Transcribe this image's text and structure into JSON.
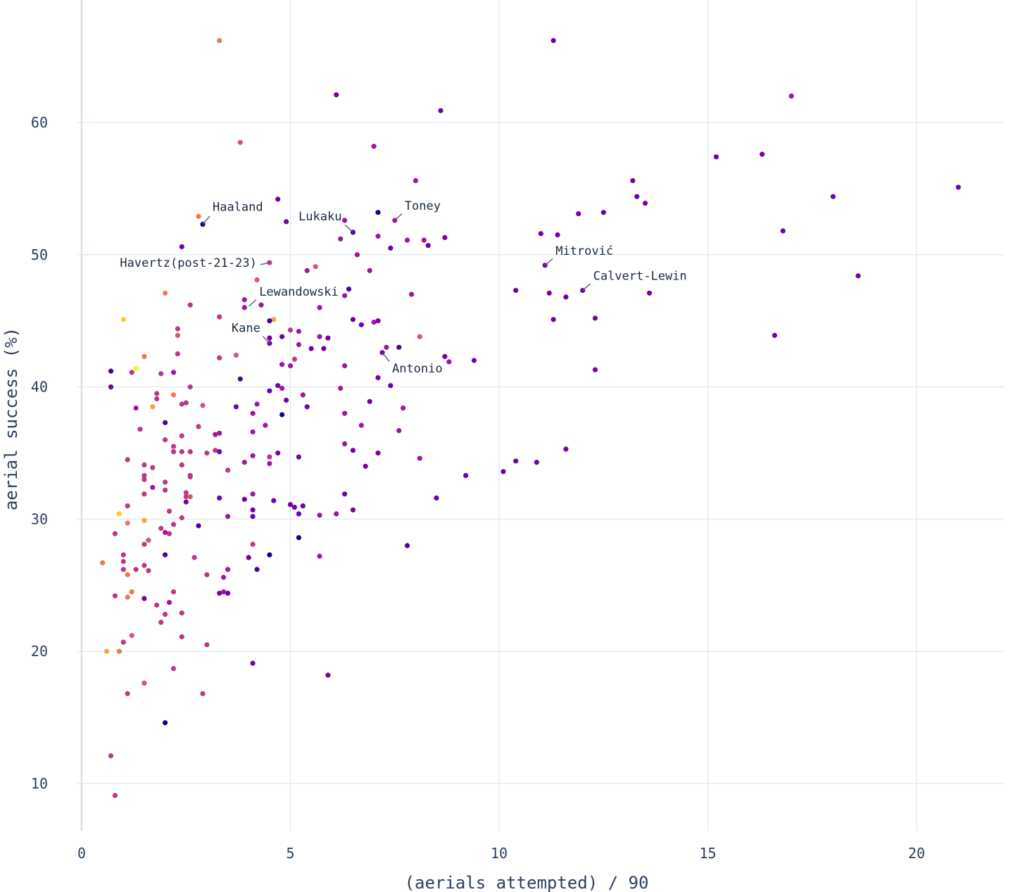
{
  "chart_data": {
    "type": "scatter",
    "xlabel": "(aerials attempted) / 90",
    "ylabel": "aerial success (%)",
    "xlim": [
      -0.3,
      22
    ],
    "ylim": [
      5,
      67
    ],
    "xticks": [
      0,
      5,
      10,
      15,
      20
    ],
    "yticks": [
      10,
      20,
      30,
      40,
      50,
      60
    ],
    "grid": true,
    "legend": "none",
    "colorscale": "plasma",
    "palette": [
      "#0d0887",
      "#46039f",
      "#7201a8",
      "#9c179e",
      "#bd3786",
      "#d8576b",
      "#ed7953",
      "#fb9f3a",
      "#fdca26",
      "#f0f921"
    ],
    "points": [
      [
        3.3,
        66.2,
        6
      ],
      [
        11.3,
        66.2,
        2
      ],
      [
        6.1,
        62.1,
        2
      ],
      [
        8.6,
        60.9,
        2
      ],
      [
        17.0,
        62.0,
        3
      ],
      [
        3.8,
        58.5,
        5
      ],
      [
        7.0,
        58.2,
        3
      ],
      [
        15.2,
        57.4,
        2
      ],
      [
        16.3,
        57.6,
        2
      ],
      [
        21.0,
        55.1,
        2
      ],
      [
        13.2,
        55.6,
        2
      ],
      [
        13.3,
        54.4,
        2
      ],
      [
        13.5,
        53.9,
        2
      ],
      [
        18.0,
        54.4,
        2
      ],
      [
        8.0,
        55.6,
        3
      ],
      [
        4.7,
        54.2,
        2
      ],
      [
        7.1,
        53.2,
        0
      ],
      [
        11.9,
        53.1,
        2
      ],
      [
        12.5,
        53.2,
        2
      ],
      [
        16.8,
        51.8,
        2
      ],
      [
        2.9,
        52.3,
        0
      ],
      [
        2.8,
        52.9,
        6
      ],
      [
        4.9,
        52.5,
        2
      ],
      [
        6.3,
        52.6,
        3
      ],
      [
        6.5,
        51.7,
        1
      ],
      [
        7.5,
        52.6,
        3
      ],
      [
        7.1,
        51.4,
        3
      ],
      [
        6.2,
        51.2,
        3
      ],
      [
        7.8,
        51.1,
        3
      ],
      [
        8.2,
        51.1,
        3
      ],
      [
        8.7,
        51.3,
        2
      ],
      [
        8.3,
        50.7,
        2
      ],
      [
        7.4,
        50.5,
        2
      ],
      [
        11.0,
        51.6,
        2
      ],
      [
        11.4,
        51.5,
        2
      ],
      [
        2.4,
        50.6,
        2
      ],
      [
        6.6,
        50.0,
        3
      ],
      [
        4.5,
        49.4,
        4
      ],
      [
        11.1,
        49.2,
        2
      ],
      [
        5.6,
        49.1,
        5
      ],
      [
        5.4,
        48.8,
        3
      ],
      [
        6.9,
        48.8,
        3
      ],
      [
        18.6,
        48.4,
        2
      ],
      [
        4.2,
        48.1,
        5
      ],
      [
        12.0,
        47.3,
        2
      ],
      [
        10.4,
        47.3,
        2
      ],
      [
        11.2,
        47.1,
        2
      ],
      [
        13.6,
        47.1,
        2
      ],
      [
        7.9,
        47.0,
        3
      ],
      [
        11.6,
        46.8,
        2
      ],
      [
        6.4,
        47.4,
        1
      ],
      [
        6.3,
        46.9,
        3
      ],
      [
        2.0,
        47.1,
        6
      ],
      [
        3.9,
        46.6,
        3
      ],
      [
        3.9,
        46.0,
        3
      ],
      [
        4.3,
        46.2,
        3
      ],
      [
        2.6,
        46.2,
        4
      ],
      [
        5.7,
        46.0,
        3
      ],
      [
        3.3,
        45.3,
        4
      ],
      [
        1.0,
        45.1,
        8
      ],
      [
        4.6,
        45.1,
        7
      ],
      [
        4.5,
        45.0,
        1
      ],
      [
        6.5,
        45.1,
        2
      ],
      [
        7.1,
        45.0,
        2
      ],
      [
        7.0,
        44.9,
        3
      ],
      [
        11.3,
        45.1,
        2
      ],
      [
        12.3,
        45.2,
        2
      ],
      [
        6.7,
        44.7,
        2
      ],
      [
        2.3,
        44.4,
        4
      ],
      [
        5.0,
        44.3,
        4
      ],
      [
        5.2,
        44.2,
        3
      ],
      [
        4.8,
        43.8,
        2
      ],
      [
        4.5,
        43.7,
        2
      ],
      [
        5.7,
        43.8,
        3
      ],
      [
        5.9,
        43.7,
        2
      ],
      [
        8.1,
        43.8,
        5
      ],
      [
        16.6,
        43.9,
        2
      ],
      [
        2.3,
        43.9,
        5
      ],
      [
        4.5,
        43.3,
        2
      ],
      [
        5.2,
        43.2,
        3
      ],
      [
        5.5,
        42.9,
        2
      ],
      [
        5.8,
        42.9,
        2
      ],
      [
        7.3,
        43.0,
        3
      ],
      [
        7.6,
        43.0,
        1
      ],
      [
        7.2,
        42.6,
        2
      ],
      [
        3.7,
        42.4,
        5
      ],
      [
        2.3,
        42.5,
        4
      ],
      [
        1.5,
        42.3,
        6
      ],
      [
        3.3,
        42.2,
        4
      ],
      [
        8.7,
        42.3,
        2
      ],
      [
        8.8,
        41.9,
        3
      ],
      [
        9.4,
        42.0,
        2
      ],
      [
        5.1,
        42.1,
        4
      ],
      [
        4.8,
        41.7,
        3
      ],
      [
        5.0,
        41.6,
        3
      ],
      [
        6.3,
        41.6,
        3
      ],
      [
        0.7,
        41.2,
        1
      ],
      [
        1.2,
        41.1,
        4
      ],
      [
        1.3,
        41.4,
        9
      ],
      [
        1.9,
        41.0,
        4
      ],
      [
        2.2,
        41.1,
        3
      ],
      [
        12.3,
        41.3,
        2
      ],
      [
        3.8,
        40.6,
        1
      ],
      [
        7.1,
        40.7,
        2
      ],
      [
        0.7,
        40.0,
        2
      ],
      [
        2.6,
        40.0,
        4
      ],
      [
        4.7,
        40.1,
        2
      ],
      [
        4.8,
        39.9,
        3
      ],
      [
        4.5,
        39.7,
        2
      ],
      [
        6.2,
        39.9,
        3
      ],
      [
        7.4,
        40.1,
        2
      ],
      [
        1.8,
        39.5,
        4
      ],
      [
        2.2,
        39.4,
        6
      ],
      [
        5.3,
        39.4,
        3
      ],
      [
        4.9,
        39.0,
        2
      ],
      [
        6.9,
        38.9,
        2
      ],
      [
        1.8,
        39.1,
        4
      ],
      [
        2.5,
        38.8,
        4
      ],
      [
        2.4,
        38.7,
        4
      ],
      [
        2.9,
        38.6,
        5
      ],
      [
        4.2,
        38.7,
        3
      ],
      [
        5.4,
        38.5,
        2
      ],
      [
        3.7,
        38.5,
        2
      ],
      [
        1.3,
        38.4,
        3
      ],
      [
        1.7,
        38.5,
        7
      ],
      [
        7.7,
        38.4,
        3
      ],
      [
        4.1,
        38.0,
        3
      ],
      [
        4.8,
        37.9,
        0
      ],
      [
        6.3,
        38.0,
        3
      ],
      [
        2.0,
        37.3,
        1
      ],
      [
        2.8,
        37.0,
        4
      ],
      [
        4.4,
        37.1,
        3
      ],
      [
        6.7,
        37.1,
        3
      ],
      [
        1.4,
        36.8,
        4
      ],
      [
        7.6,
        36.7,
        3
      ],
      [
        4.1,
        36.6,
        3
      ],
      [
        3.2,
        36.4,
        3
      ],
      [
        3.3,
        36.5,
        3
      ],
      [
        2.4,
        36.3,
        4
      ],
      [
        2.0,
        36.0,
        4
      ],
      [
        6.3,
        35.7,
        3
      ],
      [
        2.2,
        35.5,
        4
      ],
      [
        3.2,
        35.2,
        4
      ],
      [
        11.6,
        35.3,
        2
      ],
      [
        2.2,
        35.1,
        4
      ],
      [
        2.4,
        35.1,
        4
      ],
      [
        2.6,
        35.1,
        4
      ],
      [
        3.0,
        35.0,
        4
      ],
      [
        3.3,
        35.1,
        2
      ],
      [
        4.7,
        35.0,
        2
      ],
      [
        6.5,
        35.2,
        2
      ],
      [
        7.1,
        35.0,
        2
      ],
      [
        4.1,
        34.8,
        3
      ],
      [
        4.5,
        34.7,
        4
      ],
      [
        5.2,
        34.7,
        2
      ],
      [
        8.1,
        34.6,
        3
      ],
      [
        1.1,
        34.5,
        4
      ],
      [
        10.4,
        34.4,
        2
      ],
      [
        3.9,
        34.3,
        3
      ],
      [
        4.5,
        34.2,
        3
      ],
      [
        10.9,
        34.3,
        2
      ],
      [
        1.5,
        34.1,
        4
      ],
      [
        2.4,
        34.1,
        4
      ],
      [
        1.7,
        33.9,
        4
      ],
      [
        6.8,
        34.0,
        2
      ],
      [
        3.5,
        33.7,
        4
      ],
      [
        10.1,
        33.6,
        2
      ],
      [
        1.5,
        33.3,
        4
      ],
      [
        1.5,
        33.0,
        4
      ],
      [
        2.6,
        33.2,
        4
      ],
      [
        2.6,
        33.3,
        4
      ],
      [
        9.2,
        33.3,
        2
      ],
      [
        2.0,
        32.8,
        4
      ],
      [
        1.7,
        32.4,
        3
      ],
      [
        2.0,
        32.2,
        4
      ],
      [
        2.5,
        32.0,
        4
      ],
      [
        1.5,
        31.9,
        4
      ],
      [
        2.5,
        31.7,
        4
      ],
      [
        2.6,
        31.7,
        5
      ],
      [
        2.5,
        31.3,
        2
      ],
      [
        3.3,
        31.6,
        2
      ],
      [
        3.9,
        31.5,
        2
      ],
      [
        4.1,
        31.9,
        3
      ],
      [
        4.6,
        31.4,
        2
      ],
      [
        6.3,
        31.9,
        2
      ],
      [
        8.5,
        31.6,
        2
      ],
      [
        1.1,
        31.0,
        4
      ],
      [
        5.0,
        31.1,
        2
      ],
      [
        5.1,
        30.9,
        2
      ],
      [
        5.3,
        31.0,
        2
      ],
      [
        4.1,
        30.7,
        2
      ],
      [
        6.5,
        30.7,
        2
      ],
      [
        2.1,
        30.6,
        4
      ],
      [
        5.2,
        30.4,
        2
      ],
      [
        5.7,
        30.3,
        3
      ],
      [
        6.1,
        30.4,
        3
      ],
      [
        0.9,
        30.4,
        8
      ],
      [
        2.4,
        30.1,
        4
      ],
      [
        4.1,
        30.2,
        2
      ],
      [
        3.5,
        30.2,
        3
      ],
      [
        1.5,
        29.9,
        7
      ],
      [
        1.1,
        29.7,
        6
      ],
      [
        2.2,
        29.6,
        4
      ],
      [
        2.8,
        29.5,
        1
      ],
      [
        1.9,
        29.3,
        4
      ],
      [
        2.1,
        28.9,
        4
      ],
      [
        0.8,
        28.9,
        4
      ],
      [
        2.0,
        29.0,
        3
      ],
      [
        5.2,
        28.6,
        0
      ],
      [
        1.6,
        28.4,
        5
      ],
      [
        1.5,
        28.1,
        4
      ],
      [
        4.1,
        28.1,
        4
      ],
      [
        7.8,
        28.0,
        1
      ],
      [
        1.0,
        27.3,
        4
      ],
      [
        2.0,
        27.3,
        1
      ],
      [
        4.5,
        27.3,
        0
      ],
      [
        4.0,
        27.1,
        2
      ],
      [
        5.7,
        27.2,
        3
      ],
      [
        2.7,
        27.1,
        4
      ],
      [
        1.0,
        26.8,
        4
      ],
      [
        0.5,
        26.7,
        6
      ],
      [
        1.5,
        26.5,
        4
      ],
      [
        3.5,
        26.2,
        3
      ],
      [
        4.2,
        26.2,
        1
      ],
      [
        1.3,
        26.2,
        4
      ],
      [
        1.6,
        26.1,
        4
      ],
      [
        1.0,
        26.2,
        4
      ],
      [
        1.1,
        25.8,
        6
      ],
      [
        3.0,
        25.8,
        4
      ],
      [
        3.4,
        25.6,
        3
      ],
      [
        2.2,
        24.5,
        4
      ],
      [
        3.3,
        24.4,
        2
      ],
      [
        3.5,
        24.4,
        2
      ],
      [
        3.4,
        24.5,
        3
      ],
      [
        1.2,
        24.5,
        6
      ],
      [
        0.8,
        24.2,
        4
      ],
      [
        1.1,
        24.1,
        6
      ],
      [
        1.5,
        24.0,
        2
      ],
      [
        2.1,
        23.7,
        3
      ],
      [
        1.8,
        23.5,
        4
      ],
      [
        2.4,
        22.9,
        4
      ],
      [
        2.0,
        22.8,
        4
      ],
      [
        1.9,
        22.2,
        4
      ],
      [
        1.2,
        21.2,
        5
      ],
      [
        2.4,
        21.1,
        4
      ],
      [
        1.0,
        20.7,
        4
      ],
      [
        3.0,
        20.5,
        4
      ],
      [
        0.6,
        20.0,
        7
      ],
      [
        0.9,
        20.0,
        6
      ],
      [
        4.1,
        19.1,
        2
      ],
      [
        2.2,
        18.7,
        4
      ],
      [
        5.9,
        18.2,
        2
      ],
      [
        1.5,
        17.6,
        4
      ],
      [
        1.5,
        17.6,
        5
      ],
      [
        1.1,
        16.8,
        4
      ],
      [
        2.9,
        16.8,
        4
      ],
      [
        2.0,
        14.6,
        0
      ],
      [
        0.7,
        12.1,
        4
      ],
      [
        0.8,
        9.1,
        4
      ]
    ],
    "annotations": [
      {
        "label": "Haaland",
        "x": 2.9,
        "y": 52.3,
        "anchor": "start",
        "dx": 14,
        "dy": -19
      },
      {
        "label": "Lukaku",
        "x": 6.5,
        "y": 51.7,
        "anchor": "end",
        "dx": -16,
        "dy": -17
      },
      {
        "label": "Toney",
        "x": 7.5,
        "y": 52.6,
        "anchor": "start",
        "dx": 14,
        "dy": -15
      },
      {
        "label": "Havertz(post-21-23)",
        "x": 4.5,
        "y": 49.4,
        "anchor": "end",
        "dx": -18,
        "dy": 6
      },
      {
        "label": "Mitrović",
        "x": 11.1,
        "y": 49.2,
        "anchor": "start",
        "dx": 15,
        "dy": -15
      },
      {
        "label": "Calvert-Lewin",
        "x": 12.0,
        "y": 47.3,
        "anchor": "start",
        "dx": 15,
        "dy": -15
      },
      {
        "label": "Lewandowski",
        "x": 4.0,
        "y": 46.1,
        "anchor": "start",
        "dx": 15,
        "dy": -15
      },
      {
        "label": "Kane",
        "x": 4.5,
        "y": 43.3,
        "anchor": "end",
        "dx": -13,
        "dy": -16
      },
      {
        "label": "Antonio",
        "x": 7.2,
        "y": 42.6,
        "anchor": "start",
        "dx": 14,
        "dy": 28
      }
    ]
  }
}
